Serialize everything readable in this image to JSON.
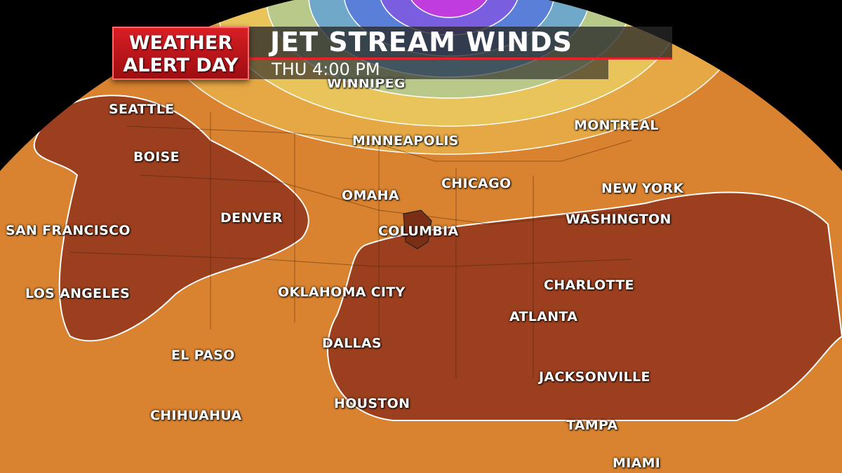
{
  "header": {
    "badge": "WEATHER ALERT DAY",
    "title": "JET STREAM WINDS",
    "subtitle": "THU 4:00 PM"
  },
  "colors": {
    "background_orange": "#d9822f",
    "jet_core_purple": "#c13cdc",
    "blue_band": "#5a7fd8",
    "yellow_band": "#e8c45a",
    "low_wind_brown": "#9c3f1e",
    "badge_red": "#c8161d"
  },
  "cities": [
    {
      "name": "WINNIPEG"
    },
    {
      "name": "SEATTLE"
    },
    {
      "name": "BOISE"
    },
    {
      "name": "MINNEAPOLIS"
    },
    {
      "name": "MONTREAL"
    },
    {
      "name": "OMAHA"
    },
    {
      "name": "CHICAGO"
    },
    {
      "name": "NEW YORK"
    },
    {
      "name": "DENVER"
    },
    {
      "name": "SAN FRANCISCO"
    },
    {
      "name": "COLUMBIA"
    },
    {
      "name": "WASHINGTON"
    },
    {
      "name": "OKLAHOMA CITY"
    },
    {
      "name": "LOS ANGELES"
    },
    {
      "name": "CHARLOTTE"
    },
    {
      "name": "ATLANTA"
    },
    {
      "name": "DALLAS"
    },
    {
      "name": "EL PASO"
    },
    {
      "name": "JACKSONVILLE"
    },
    {
      "name": "HOUSTON"
    },
    {
      "name": "CHIHUAHUA"
    },
    {
      "name": "TAMPA"
    },
    {
      "name": "MIAMI"
    }
  ]
}
